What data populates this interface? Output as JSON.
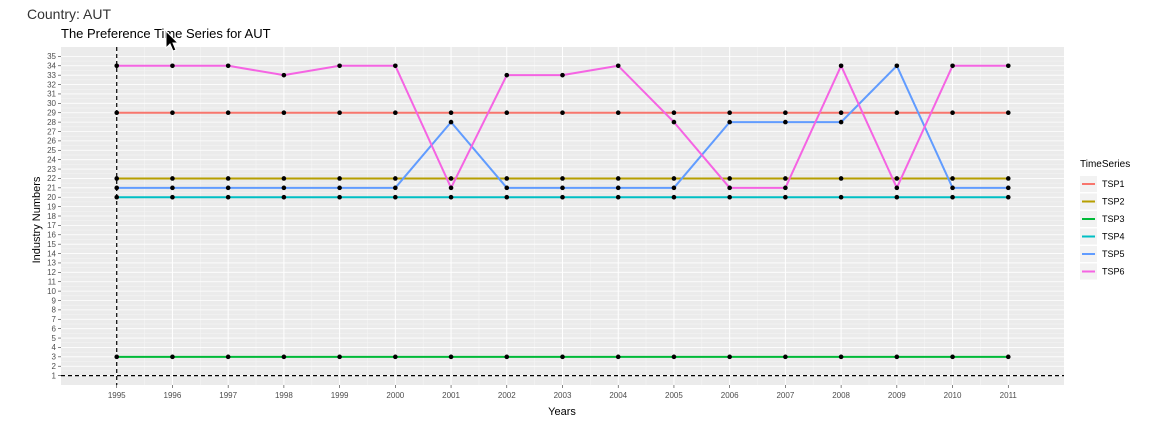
{
  "page": {
    "country_label": "Country: AUT"
  },
  "chart_data": {
    "type": "line",
    "title": "The Preference Time Series for  AUT",
    "xlabel": "Years",
    "ylabel": "Industry Numbers",
    "x": [
      1995,
      1996,
      1997,
      1998,
      1999,
      2000,
      2001,
      2002,
      2003,
      2004,
      2005,
      2006,
      2007,
      2008,
      2009,
      2010,
      2011
    ],
    "xlim": [
      1994,
      2012
    ],
    "ylim": [
      0,
      36
    ],
    "y_ticks": [
      1,
      2,
      3,
      4,
      5,
      6,
      7,
      8,
      9,
      10,
      11,
      12,
      13,
      14,
      15,
      16,
      17,
      18,
      19,
      20,
      21,
      22,
      23,
      24,
      25,
      26,
      27,
      28,
      29,
      30,
      31,
      32,
      33,
      34,
      35
    ],
    "grid": true,
    "legend": {
      "title": "TimeSeries",
      "position": "right"
    },
    "reference_lines": {
      "vertical_x": 1995,
      "horizontal_y": 1,
      "style": "dashed"
    },
    "series": [
      {
        "name": "TSP1",
        "color": "#F8766D",
        "values": [
          29,
          29,
          29,
          29,
          29,
          29,
          29,
          29,
          29,
          29,
          29,
          29,
          29,
          29,
          29,
          29,
          29
        ]
      },
      {
        "name": "TSP2",
        "color": "#B79F00",
        "values": [
          22,
          22,
          22,
          22,
          22,
          22,
          22,
          22,
          22,
          22,
          22,
          22,
          22,
          22,
          22,
          22,
          22
        ]
      },
      {
        "name": "TSP3",
        "color": "#00BA38",
        "values": [
          3,
          3,
          3,
          3,
          3,
          3,
          3,
          3,
          3,
          3,
          3,
          3,
          3,
          3,
          3,
          3,
          3
        ]
      },
      {
        "name": "TSP4",
        "color": "#00BFC4",
        "values": [
          20,
          20,
          20,
          20,
          20,
          20,
          20,
          20,
          20,
          20,
          20,
          20,
          20,
          20,
          20,
          20,
          20
        ]
      },
      {
        "name": "TSP5",
        "color": "#619CFF",
        "values": [
          21,
          21,
          21,
          21,
          21,
          21,
          28,
          21,
          21,
          21,
          21,
          28,
          28,
          28,
          34,
          21,
          21
        ]
      },
      {
        "name": "TSP6",
        "color": "#F564E3",
        "values": [
          34,
          34,
          34,
          33,
          34,
          34,
          21,
          33,
          33,
          34,
          28,
          21,
          21,
          34,
          21,
          34,
          34
        ]
      }
    ]
  }
}
